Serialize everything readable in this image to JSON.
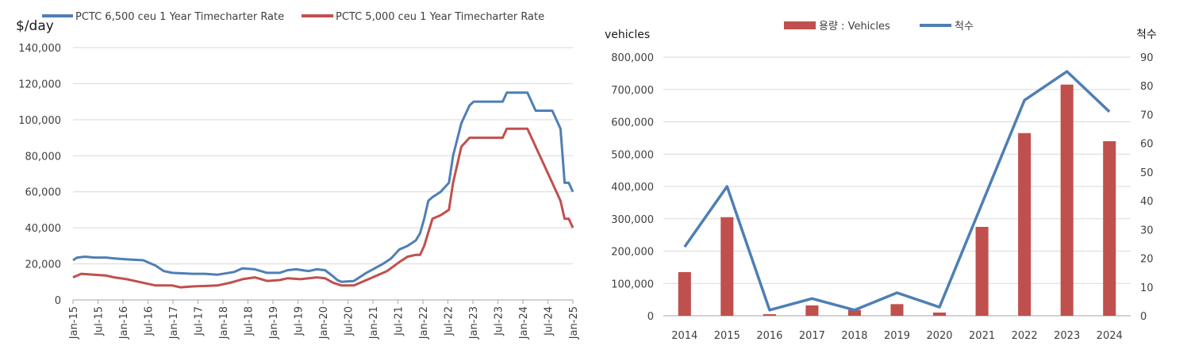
{
  "colors": {
    "blue": "#4e7fb5",
    "red": "#c0504d"
  },
  "chart_data": [
    {
      "type": "line",
      "unit_label": "$/day",
      "ylim": [
        0,
        140000
      ],
      "yticks": [
        "0",
        "20,000",
        "40,000",
        "60,000",
        "80,000",
        "100,000",
        "120,000",
        "140,000"
      ],
      "xticks": [
        "Jan-15",
        "Jul-15",
        "Jan-16",
        "Jul-16",
        "Jan-17",
        "Jul-17",
        "Jan-18",
        "Jul-18",
        "Jan-19",
        "Jul-19",
        "Jan-20",
        "Jul-20",
        "Jan-21",
        "Jul-21",
        "Jan-22",
        "Jul-22",
        "Jan-23",
        "Jul-23",
        "Jan-24",
        "Jul-24",
        "Jan-25"
      ],
      "x_start": "2015-01",
      "x_end": "2025-02",
      "grid": true,
      "legend_position": "top",
      "series": [
        {
          "name": "PCTC 6,500 ceu 1 Year Timecharter Rate",
          "color": "#4e7fb5",
          "points": [
            [
              "2015-01",
              22000
            ],
            [
              "2015-02",
              23500
            ],
            [
              "2015-04",
              24000
            ],
            [
              "2015-06",
              23500
            ],
            [
              "2015-09",
              23500
            ],
            [
              "2015-11",
              23000
            ],
            [
              "2016-02",
              22500
            ],
            [
              "2016-06",
              22000
            ],
            [
              "2016-09",
              19000
            ],
            [
              "2016-11",
              16000
            ],
            [
              "2017-01",
              15000
            ],
            [
              "2017-06",
              14500
            ],
            [
              "2017-09",
              14500
            ],
            [
              "2017-12",
              14000
            ],
            [
              "2018-04",
              15500
            ],
            [
              "2018-06",
              17500
            ],
            [
              "2018-09",
              17000
            ],
            [
              "2018-12",
              15000
            ],
            [
              "2019-03",
              15000
            ],
            [
              "2019-05",
              16500
            ],
            [
              "2019-07",
              17000
            ],
            [
              "2019-10",
              16000
            ],
            [
              "2019-12",
              17000
            ],
            [
              "2020-02",
              16500
            ],
            [
              "2020-04",
              13000
            ],
            [
              "2020-05",
              11000
            ],
            [
              "2020-06",
              10000
            ],
            [
              "2020-09",
              10500
            ],
            [
              "2020-10",
              12000
            ],
            [
              "2020-12",
              15000
            ],
            [
              "2021-02",
              17500
            ],
            [
              "2021-04",
              20000
            ],
            [
              "2021-06",
              23000
            ],
            [
              "2021-08",
              28000
            ],
            [
              "2021-10",
              30000
            ],
            [
              "2021-12",
              33000
            ],
            [
              "2022-01",
              37000
            ],
            [
              "2022-02",
              45000
            ],
            [
              "2022-03",
              55000
            ],
            [
              "2022-04",
              57000
            ],
            [
              "2022-06",
              60000
            ],
            [
              "2022-08",
              65000
            ],
            [
              "2022-09",
              80000
            ],
            [
              "2022-11",
              98000
            ],
            [
              "2023-01",
              108000
            ],
            [
              "2023-02",
              110000
            ],
            [
              "2023-09",
              110000
            ],
            [
              "2023-10",
              115000
            ],
            [
              "2024-03",
              115000
            ],
            [
              "2024-05",
              105000
            ],
            [
              "2024-09",
              105000
            ],
            [
              "2024-11",
              95000
            ],
            [
              "2024-12",
              65000
            ],
            [
              "2025-01",
              65000
            ],
            [
              "2025-02",
              60000
            ]
          ]
        },
        {
          "name": "PCTC 5,000 ceu 1 Year Timecharter Rate",
          "color": "#c0504d",
          "points": [
            [
              "2015-01",
              12500
            ],
            [
              "2015-03",
              14500
            ],
            [
              "2015-06",
              14000
            ],
            [
              "2015-09",
              13500
            ],
            [
              "2015-11",
              12500
            ],
            [
              "2016-02",
              11500
            ],
            [
              "2016-05",
              10000
            ],
            [
              "2016-09",
              8000
            ],
            [
              "2017-01",
              8000
            ],
            [
              "2017-03",
              7000
            ],
            [
              "2017-06",
              7500
            ],
            [
              "2017-12",
              8000
            ],
            [
              "2018-03",
              9500
            ],
            [
              "2018-06",
              11500
            ],
            [
              "2018-09",
              12500
            ],
            [
              "2018-12",
              10500
            ],
            [
              "2019-03",
              11000
            ],
            [
              "2019-05",
              12000
            ],
            [
              "2019-08",
              11500
            ],
            [
              "2019-12",
              12500
            ],
            [
              "2020-02",
              12000
            ],
            [
              "2020-04",
              9500
            ],
            [
              "2020-06",
              8000
            ],
            [
              "2020-09",
              8000
            ],
            [
              "2020-11",
              10000
            ],
            [
              "2021-02",
              13000
            ],
            [
              "2021-05",
              16000
            ],
            [
              "2021-08",
              21000
            ],
            [
              "2021-10",
              24000
            ],
            [
              "2021-12",
              25000
            ],
            [
              "2022-01",
              25000
            ],
            [
              "2022-02",
              30000
            ],
            [
              "2022-04",
              45000
            ],
            [
              "2022-06",
              47000
            ],
            [
              "2022-08",
              50000
            ],
            [
              "2022-09",
              65000
            ],
            [
              "2022-11",
              85000
            ],
            [
              "2023-01",
              90000
            ],
            [
              "2023-09",
              90000
            ],
            [
              "2023-10",
              95000
            ],
            [
              "2024-03",
              95000
            ],
            [
              "2024-05",
              85000
            ],
            [
              "2024-08",
              70000
            ],
            [
              "2024-11",
              55000
            ],
            [
              "2024-12",
              45000
            ],
            [
              "2025-01",
              45000
            ],
            [
              "2025-02",
              40000
            ]
          ]
        }
      ]
    },
    {
      "type": "bar+line",
      "left_unit": "vehicles",
      "right_unit": "척수",
      "categories": [
        "2014",
        "2015",
        "2016",
        "2017",
        "2018",
        "2019",
        "2020",
        "2021",
        "2022",
        "2023",
        "2024"
      ],
      "ylim_left": [
        0,
        800000
      ],
      "ylim_right": [
        0,
        90
      ],
      "yticks_left": [
        "0",
        "100,000",
        "200,000",
        "300,000",
        "400,000",
        "500,000",
        "600,000",
        "700,000",
        "800,000"
      ],
      "yticks_right": [
        "0",
        "10",
        "20",
        "30",
        "40",
        "50",
        "60",
        "70",
        "80",
        "90"
      ],
      "grid": true,
      "legend_position": "top",
      "bar_series": {
        "name": "용량 : Vehicles",
        "color": "#c0504d",
        "values": [
          135000,
          305000,
          5000,
          32000,
          18000,
          36000,
          10000,
          275000,
          565000,
          715000,
          540000
        ]
      },
      "line_series": {
        "name": "척수",
        "color": "#4e7fb5",
        "values": [
          24,
          45,
          2,
          6,
          2,
          8,
          3,
          39,
          75,
          85,
          71
        ]
      }
    }
  ]
}
